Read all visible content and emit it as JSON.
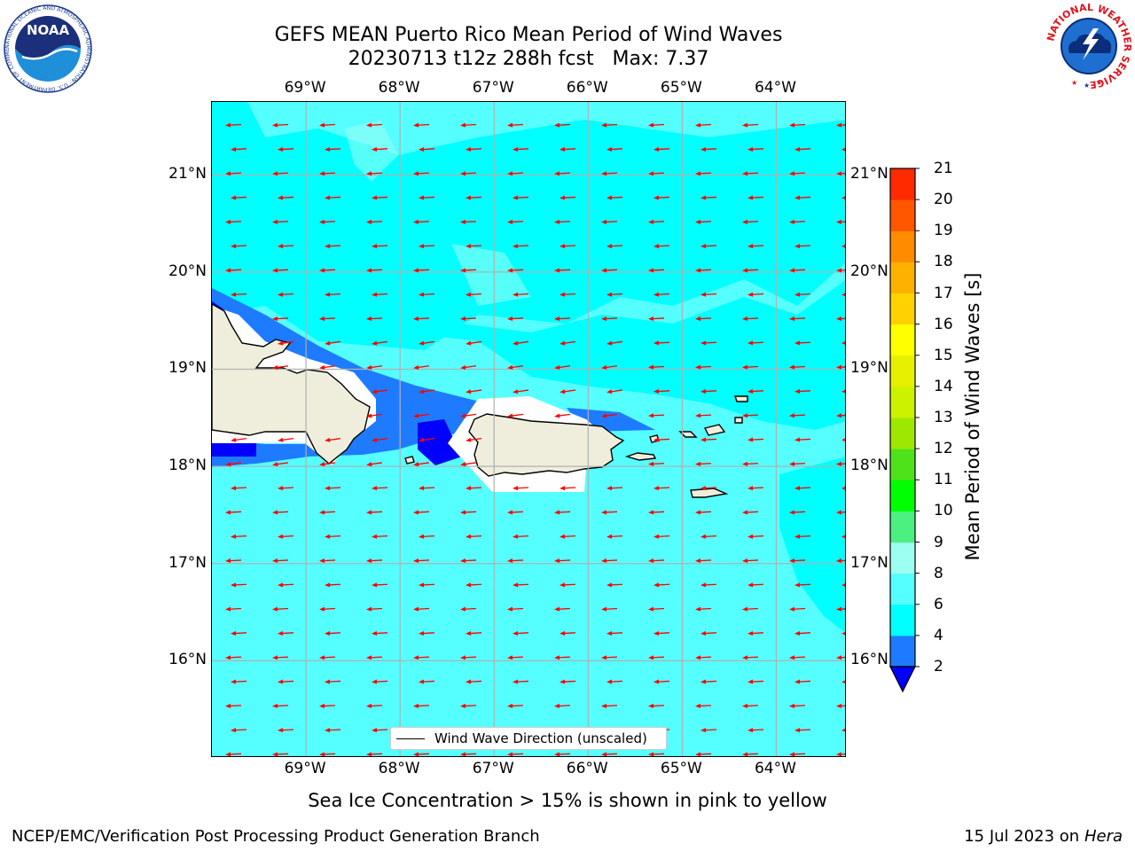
{
  "title": {
    "line1": "GEFS MEAN Puerto Rico Mean Period of Wind Waves",
    "line2": "20230713 t12z 288h fcst   Max: 7.37"
  },
  "axes": {
    "lon_ticks": [
      {
        "label": "69°W",
        "value": -69
      },
      {
        "label": "68°W",
        "value": -68
      },
      {
        "label": "67°W",
        "value": -67
      },
      {
        "label": "66°W",
        "value": -66
      },
      {
        "label": "65°W",
        "value": -65
      },
      {
        "label": "64°W",
        "value": -64
      }
    ],
    "lat_ticks": [
      {
        "label": "21°N",
        "value": 21
      },
      {
        "label": "20°N",
        "value": 20
      },
      {
        "label": "19°N",
        "value": 19
      },
      {
        "label": "18°N",
        "value": 18
      },
      {
        "label": "17°N",
        "value": 17
      },
      {
        "label": "16°N",
        "value": 16
      }
    ],
    "lon_range": [
      -70,
      -63.25
    ],
    "lat_range": [
      15,
      21.75
    ]
  },
  "map": {
    "ocean_color": "#55ffff",
    "land_color": "#efeedc",
    "grid_color": "#b0b0b0",
    "arrow_color": "#ff0000",
    "arrow_direction": "westward (from east)"
  },
  "legend": {
    "label": "Wind Wave Direction (unscaled)"
  },
  "colorbar": {
    "label": "Mean Period of Wind Waves [s]",
    "ticks": [
      "2",
      "4",
      "6",
      "8",
      "9",
      "10",
      "11",
      "12",
      "13",
      "14",
      "15",
      "16",
      "17",
      "18",
      "19",
      "20",
      "21"
    ],
    "levels": [
      2,
      4,
      6,
      8,
      9,
      10,
      11,
      12,
      13,
      14,
      15,
      16,
      17,
      18,
      19,
      20,
      21
    ],
    "colors": [
      "#1e7bff",
      "#00ffff",
      "#55ffff",
      "#9dfff2",
      "#4cf080",
      "#00ff00",
      "#4ee21b",
      "#9ee700",
      "#cdf200",
      "#e6f000",
      "#ffff00",
      "#ffd200",
      "#ffb100",
      "#ff8c00",
      "#ff5600",
      "#ff2a00"
    ],
    "under_color": "#0000ff"
  },
  "footer": {
    "note": "Sea Ice Concentration > 15% is shown in pink to yellow",
    "left": "NCEP/EMC/Verification Post Processing Product Generation Branch",
    "right_date": "15 Jul 2023 on",
    "right_host": "Hera"
  },
  "logos": {
    "noaa_text": "NOAA",
    "noaa_ring": "NATIONAL OCEANIC AND ATMOSPHERIC ADMINISTRATION · U.S. DEPARTMENT OF COMMERCE",
    "nws_ring": "NATIONAL WEATHER SERVICE"
  }
}
